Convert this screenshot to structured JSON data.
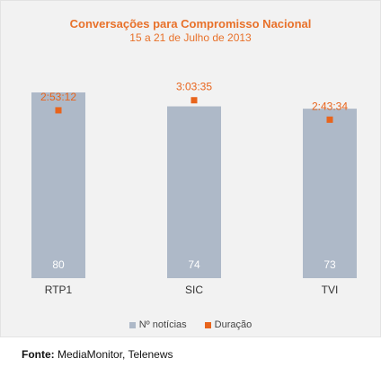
{
  "chart_data": {
    "type": "bar",
    "title": "Conversações para Compromisso Nacional",
    "subtitle": "15 a 21 de Julho de 2013",
    "categories": [
      "RTP1",
      "SIC",
      "TVI"
    ],
    "series": [
      {
        "name": "Nº notícias",
        "type": "bar",
        "values": [
          80,
          74,
          73
        ],
        "color": "#aeb9c8"
      },
      {
        "name": "Duração",
        "type": "scatter",
        "values": [
          "2:53:12",
          "3:03:35",
          "2:43:34"
        ],
        "seconds": [
          10392,
          11015,
          9814
        ],
        "color": "#e8641c"
      }
    ],
    "ylim": [
      0,
      80
    ],
    "duration_ylim_seconds": [
      0,
      11500
    ],
    "grid": false,
    "legend_position": "bottom"
  },
  "source": {
    "label": "Fonte:",
    "text": "MediaMonitor, Telenews"
  },
  "colors": {
    "title": "#e8712a",
    "bar": "#aeb9c8",
    "marker": "#e8641c",
    "bar_label": "#ffffff"
  }
}
